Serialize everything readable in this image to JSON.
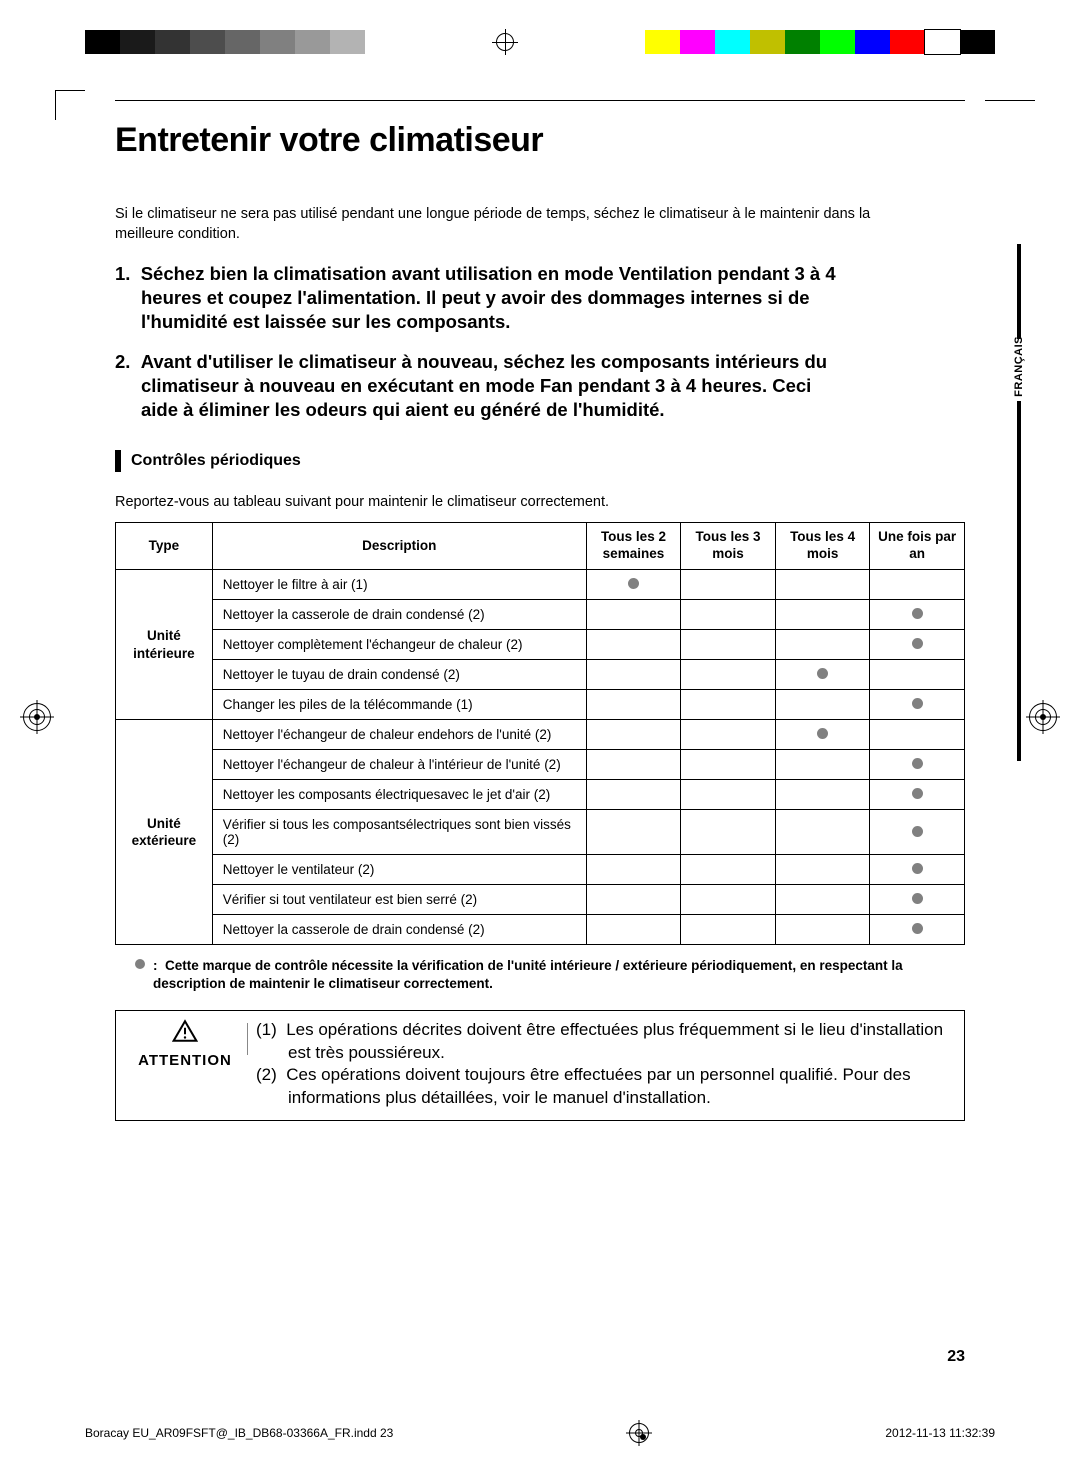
{
  "title": "Entretenir votre climatiseur",
  "intro": "Si le climatiseur ne sera pas utilisé pendant une longue période de temps, séchez le climatiseur à le maintenir dans la meilleure condition.",
  "numbered": [
    "1.  Séchez bien la climatisation avant utilisation en mode Ventilation pendant 3 à 4 heures et coupez l'alimentation. Il peut y avoir des dommages internes si de l'humidité est laissée sur les composants.",
    "2.  Avant d'utiliser le climatiseur à nouveau, séchez les composants intérieurs du climatiseur à nouveau en exécutant en mode Fan pendant 3 à 4 heures. Ceci aide à éliminer les odeurs qui aient eu généré de l'humidité."
  ],
  "lang_tab": "FRANÇAIS",
  "section_title": "Contrôles périodiques",
  "section_intro": "Reportez-vous au tableau suivant pour maintenir le climatiseur correctement.",
  "table": {
    "headers": [
      "Type",
      "Description",
      "Tous les 2\nsemaines",
      "Tous les 3\nmois",
      "Tous les 4\nmois",
      "Une fois par\nan"
    ],
    "groups": [
      {
        "type": "Unité\nintérieure",
        "rows": [
          {
            "desc": "Nettoyer le filtre à air (1)",
            "checks": [
              true,
              false,
              false,
              false
            ]
          },
          {
            "desc": "Nettoyer la casserole de drain condensé (2)",
            "checks": [
              false,
              false,
              false,
              true
            ]
          },
          {
            "desc": "Nettoyer complètement l'échangeur de chaleur (2)",
            "checks": [
              false,
              false,
              false,
              true
            ]
          },
          {
            "desc": "Nettoyer le tuyau de drain condensé (2)",
            "checks": [
              false,
              false,
              true,
              false
            ]
          },
          {
            "desc": "Changer les piles de la télécommande (1)",
            "checks": [
              false,
              false,
              false,
              true
            ]
          }
        ]
      },
      {
        "type": "Unité\nextérieure",
        "rows": [
          {
            "desc": "Nettoyer l'échangeur de chaleur endehors de l'unité (2)",
            "checks": [
              false,
              false,
              true,
              false
            ]
          },
          {
            "desc": "Nettoyer l'échangeur de chaleur à l'intérieur de l'unité (2)",
            "checks": [
              false,
              false,
              false,
              true
            ]
          },
          {
            "desc": "Nettoyer les composants électriquesavec le jet d'air (2)",
            "checks": [
              false,
              false,
              false,
              true
            ]
          },
          {
            "desc": "Vérifier si tous les composantsélectriques sont bien vissés (2)",
            "checks": [
              false,
              false,
              false,
              true
            ]
          },
          {
            "desc": "Nettoyer le ventilateur (2)",
            "checks": [
              false,
              false,
              false,
              true
            ]
          },
          {
            "desc": "Vérifier si tout ventilateur est bien serré (2)",
            "checks": [
              false,
              false,
              false,
              true
            ]
          },
          {
            "desc": "Nettoyer la casserole de drain condensé (2)",
            "checks": [
              false,
              false,
              false,
              true
            ]
          }
        ]
      }
    ]
  },
  "legend": ":  Cette marque de contrôle nécessite la vérification de l'unité intérieure / extérieure périodiquement, en respectant la description de maintenir le climatiseur correctement.",
  "attention": {
    "label": "ATTENTION",
    "paras": [
      "(1)  Les opérations décrites doivent être effectuées plus fréquemment si le lieu d'installation est très poussiéreux.",
      "(2)  Ces opérations doivent toujours être effectuées par un personnel qualifié. Pour des informations plus détaillées, voir le manuel d'installation."
    ]
  },
  "page_number": "23",
  "footer": {
    "file": "Boracay EU_AR09FSFT@_IB_DB68-03366A_FR.indd   23",
    "timestamp": "2012-11-13   11:32:39"
  },
  "colors": {
    "dot": "#808080",
    "print_bar": [
      "#000000",
      "#1a1a1a",
      "#333333",
      "#4d4d4d",
      "#666666",
      "#808080",
      "#999999",
      "#b3b3b3",
      "#ffff00",
      "#ff00ff",
      "#00ffff",
      "#c0c000",
      "#008000",
      "#00ff00",
      "#0000ff",
      "#ff0000",
      "#ffffff",
      "#000000"
    ]
  }
}
